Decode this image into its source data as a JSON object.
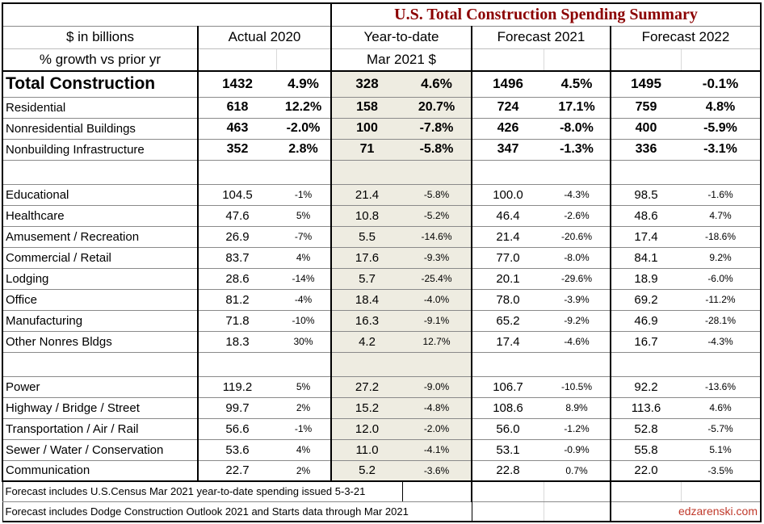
{
  "chart_data": {
    "type": "table",
    "title": "U.S. Total Construction Spending Summary",
    "label_header_line1": "$ in billions",
    "label_header_line2": "% growth vs prior yr",
    "column_groups": [
      "Actual 2020",
      "Year-to-date",
      "Forecast 2021",
      "Forecast 2022"
    ],
    "ytd_subheader": "Mar 2021 $",
    "rows": [
      {
        "style": "total",
        "label": "Total Construction",
        "values": [
          "1432",
          "4.9%",
          "328",
          "4.6%",
          "1496",
          "4.5%",
          "1495",
          "-0.1%"
        ]
      },
      {
        "style": "major",
        "label": "Residential",
        "values": [
          "618",
          "12.2%",
          "158",
          "20.7%",
          "724",
          "17.1%",
          "759",
          "4.8%"
        ]
      },
      {
        "style": "major",
        "label": "Nonresidential Buildings",
        "values": [
          "463",
          "-2.0%",
          "100",
          "-7.8%",
          "426",
          "-8.0%",
          "400",
          "-5.9%"
        ]
      },
      {
        "style": "major",
        "label": "Nonbuilding Infrastructure",
        "values": [
          "352",
          "2.8%",
          "71",
          "-5.8%",
          "347",
          "-1.3%",
          "336",
          "-3.1%"
        ]
      },
      {
        "style": "spacer",
        "label": "",
        "values": [
          "",
          "",
          "",
          "",
          "",
          "",
          "",
          ""
        ]
      },
      {
        "style": "minor",
        "label": "Educational",
        "values": [
          "104.5",
          "-1%",
          "21.4",
          "-5.8%",
          "100.0",
          "-4.3%",
          "98.5",
          "-1.6%"
        ]
      },
      {
        "style": "minor",
        "label": "Healthcare",
        "values": [
          "47.6",
          "5%",
          "10.8",
          "-5.2%",
          "46.4",
          "-2.6%",
          "48.6",
          "4.7%"
        ]
      },
      {
        "style": "minor",
        "label": "Amusement / Recreation",
        "values": [
          "26.9",
          "-7%",
          "5.5",
          "-14.6%",
          "21.4",
          "-20.6%",
          "17.4",
          "-18.6%"
        ]
      },
      {
        "style": "minor",
        "label": "Commercial / Retail",
        "values": [
          "83.7",
          "4%",
          "17.6",
          "-9.3%",
          "77.0",
          "-8.0%",
          "84.1",
          "9.2%"
        ]
      },
      {
        "style": "minor",
        "label": "Lodging",
        "values": [
          "28.6",
          "-14%",
          "5.7",
          "-25.4%",
          "20.1",
          "-29.6%",
          "18.9",
          "-6.0%"
        ]
      },
      {
        "style": "minor",
        "label": "Office",
        "values": [
          "81.2",
          "-4%",
          "18.4",
          "-4.0%",
          "78.0",
          "-3.9%",
          "69.2",
          "-11.2%"
        ]
      },
      {
        "style": "minor",
        "label": "Manufacturing",
        "values": [
          "71.8",
          "-10%",
          "16.3",
          "-9.1%",
          "65.2",
          "-9.2%",
          "46.9",
          "-28.1%"
        ]
      },
      {
        "style": "minor",
        "label": "Other Nonres Bldgs",
        "values": [
          "18.3",
          "30%",
          "4.2",
          "12.7%",
          "17.4",
          "-4.6%",
          "16.7",
          "-4.3%"
        ]
      },
      {
        "style": "spacer",
        "label": "",
        "values": [
          "",
          "",
          "",
          "",
          "",
          "",
          "",
          ""
        ]
      },
      {
        "style": "minor",
        "label": "Power",
        "values": [
          "119.2",
          "5%",
          "27.2",
          "-9.0%",
          "106.7",
          "-10.5%",
          "92.2",
          "-13.6%"
        ]
      },
      {
        "style": "minor",
        "label": "Highway / Bridge / Street",
        "values": [
          "99.7",
          "2%",
          "15.2",
          "-4.8%",
          "108.6",
          "8.9%",
          "113.6",
          "4.6%"
        ]
      },
      {
        "style": "minor",
        "label": "Transportation / Air / Rail",
        "values": [
          "56.6",
          "-1%",
          "12.0",
          "-2.0%",
          "56.0",
          "-1.2%",
          "52.8",
          "-5.7%"
        ]
      },
      {
        "style": "minor",
        "label": "Sewer / Water / Conservation",
        "values": [
          "53.6",
          "4%",
          "11.0",
          "-4.1%",
          "53.1",
          "-0.9%",
          "55.8",
          "5.1%"
        ]
      },
      {
        "style": "minor",
        "label": "Communication",
        "values": [
          "22.7",
          "2%",
          "5.2",
          "-3.6%",
          "22.8",
          "0.7%",
          "22.0",
          "-3.5%"
        ]
      }
    ],
    "footnotes": [
      "Forecast includes U.S.Census Mar 2021 year-to-date spending issued 5-3-21",
      "Forecast includes Dodge Construction Outlook 2021 and Starts data through Mar 2021"
    ],
    "credit": "edzarenski.com",
    "colors": {
      "title_text": "#8b0000",
      "credit_text": "#c0392b",
      "ytd_column_fill": "#eeece1",
      "grid_line": "#8a8a8a",
      "group_border": "#000000"
    }
  }
}
